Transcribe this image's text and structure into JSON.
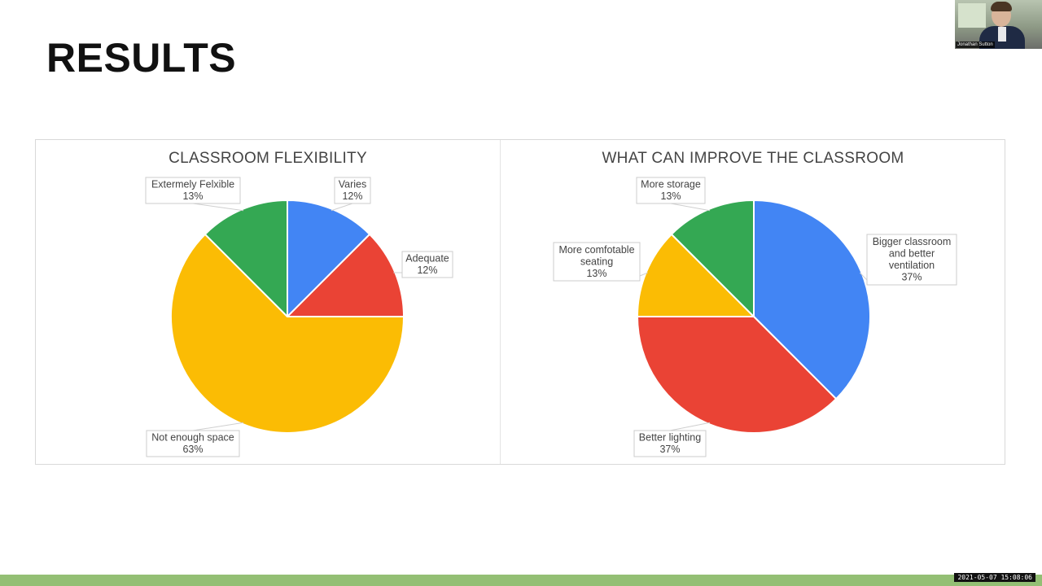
{
  "slide": {
    "title": "RESULTS",
    "timestamp": "2021-05-07 15:08:06"
  },
  "video_tile": {
    "participant_name": "Jonathan Sutton"
  },
  "colors": {
    "blue": "#4285F4",
    "red": "#EA4335",
    "yellow": "#FBBC04",
    "green": "#34A853",
    "bottom_bar": "#93BF74"
  },
  "chart_data": [
    {
      "type": "pie",
      "title": "CLASSROOM FLEXIBILITY",
      "start_angle_deg": 0,
      "direction": "clockwise",
      "slices": [
        {
          "label": "Varies",
          "percent_label": "12%",
          "value": 12.5,
          "color": "#4285F4"
        },
        {
          "label": "Adequate",
          "percent_label": "12%",
          "value": 12.5,
          "color": "#EA4335"
        },
        {
          "label": "Not enough space",
          "percent_label": "63%",
          "value": 62.5,
          "color": "#FBBC04"
        },
        {
          "label": "Extermely Felxible",
          "percent_label": "13%",
          "value": 12.5,
          "color": "#34A853"
        }
      ]
    },
    {
      "type": "pie",
      "title": "WHAT CAN IMPROVE THE CLASSROOM",
      "start_angle_deg": 0,
      "direction": "clockwise",
      "slices": [
        {
          "label": "Bigger classroom and better ventilation",
          "label_lines": [
            "Bigger classroom",
            "and better",
            "ventilation"
          ],
          "percent_label": "37%",
          "value": 37.5,
          "color": "#4285F4"
        },
        {
          "label": "Better lighting",
          "label_lines": [
            "Better lighting"
          ],
          "percent_label": "37%",
          "value": 37.5,
          "color": "#EA4335"
        },
        {
          "label": "More comfotable seating",
          "label_lines": [
            "More comfotable",
            "seating"
          ],
          "percent_label": "13%",
          "value": 12.5,
          "color": "#FBBC04"
        },
        {
          "label": "More storage",
          "label_lines": [
            "More storage"
          ],
          "percent_label": "13%",
          "value": 12.5,
          "color": "#34A853"
        }
      ]
    }
  ]
}
